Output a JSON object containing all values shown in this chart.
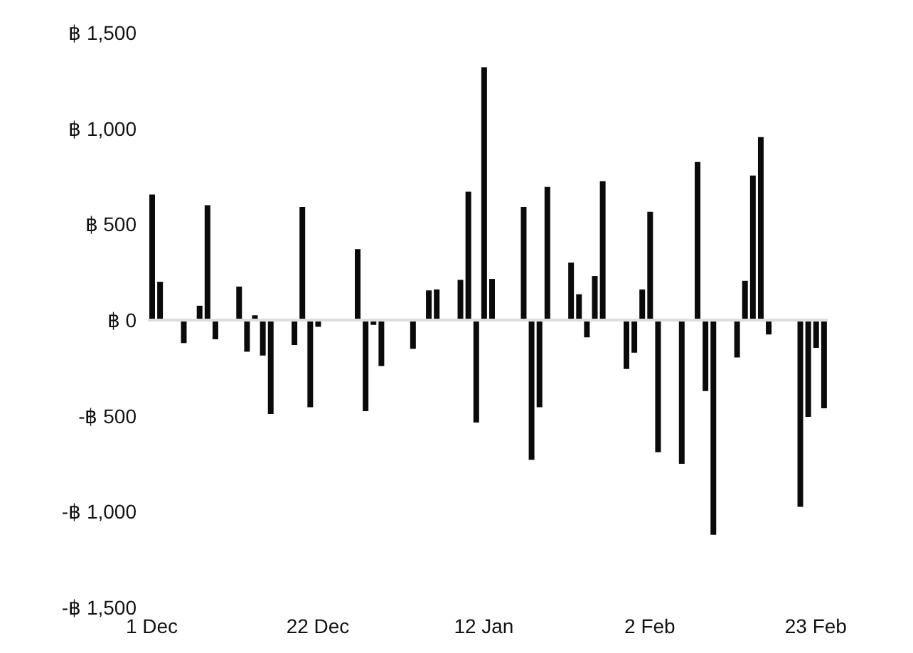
{
  "chart_data": {
    "type": "bar",
    "categories": [
      "1 Dec",
      null,
      null,
      null,
      null,
      null,
      null,
      null,
      null,
      null,
      null,
      null,
      null,
      null,
      null,
      null,
      null,
      null,
      null,
      null,
      null,
      "22 Dec",
      null,
      null,
      null,
      null,
      null,
      null,
      null,
      null,
      null,
      null,
      null,
      null,
      null,
      null,
      null,
      null,
      null,
      null,
      null,
      null,
      "12 Jan",
      null,
      null,
      null,
      null,
      null,
      null,
      null,
      null,
      null,
      null,
      null,
      null,
      null,
      null,
      null,
      null,
      null,
      null,
      null,
      null,
      "2 Feb",
      null,
      null,
      null,
      null,
      null,
      null,
      null,
      null,
      null,
      null,
      null,
      null,
      null,
      null,
      null,
      null,
      null,
      null,
      null,
      null,
      "23 Feb",
      null
    ],
    "values": [
      655,
      200,
      null,
      null,
      -120,
      null,
      75,
      600,
      -100,
      null,
      null,
      175,
      -165,
      25,
      -185,
      -490,
      null,
      null,
      -130,
      590,
      -455,
      -35,
      null,
      null,
      null,
      null,
      370,
      -475,
      -25,
      -240,
      null,
      null,
      null,
      -150,
      null,
      155,
      160,
      null,
      null,
      210,
      670,
      -535,
      1320,
      215,
      null,
      null,
      null,
      590,
      -730,
      -455,
      695,
      null,
      null,
      300,
      135,
      -90,
      230,
      725,
      null,
      null,
      -255,
      -170,
      160,
      565,
      -690,
      null,
      null,
      -750,
      null,
      825,
      -370,
      -1120,
      null,
      null,
      -195,
      205,
      755,
      955,
      -75,
      null,
      null,
      null,
      -975,
      -505,
      -145,
      -460
    ],
    "color": "#0a0a0a",
    "ylim": [
      -1500,
      1500
    ],
    "yticks": [
      {
        "value": -1500,
        "label": "-฿ 1,500"
      },
      {
        "value": -1000,
        "label": "-฿ 1,000"
      },
      {
        "value": -500,
        "label": "-฿ 500"
      },
      {
        "value": 0,
        "label": "฿ 0"
      },
      {
        "value": 500,
        "label": "฿ 500"
      },
      {
        "value": 1000,
        "label": "฿ 1,000"
      },
      {
        "value": 1500,
        "label": "฿ 1,500"
      }
    ],
    "ref_lines": [
      {
        "axis": "y",
        "value": 0,
        "color": "#dddddd"
      }
    ],
    "legend": false
  }
}
